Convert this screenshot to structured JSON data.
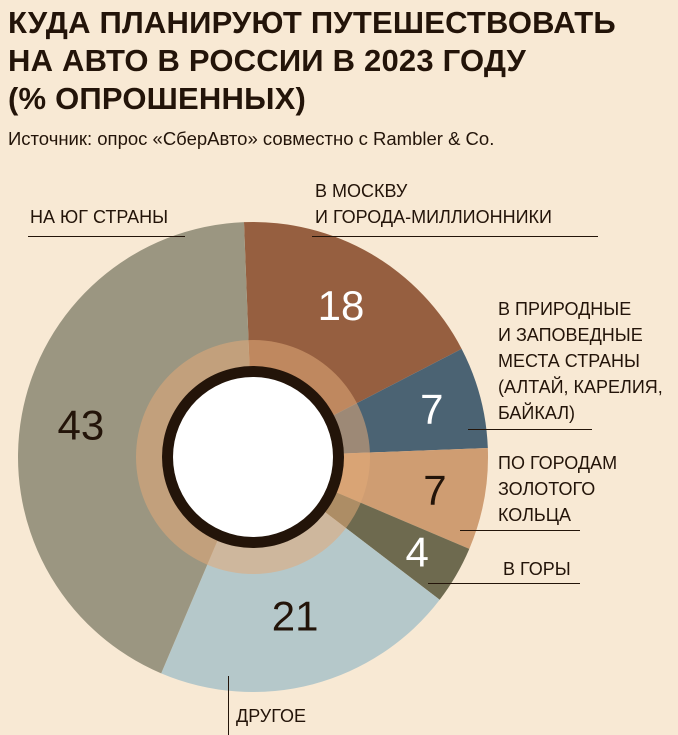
{
  "title_lines": [
    "КУДА ПЛАНИРУЮТ ПУТЕШЕСТВОВАТЬ",
    "НА АВТО В РОССИИ В 2023 ГОДУ",
    "(% ОПРОШЕННЫХ)"
  ],
  "source": "Источник: опрос «СберАвто» совместно с Rambler & Co.",
  "chart_data": {
    "type": "pie",
    "title": "КУДА ПЛАНИРУЮТ ПУТЕШЕСТВОВАТЬ НА АВТО В РОССИИ В 2023 ГОДУ (% ОПРОШЕННЫХ)",
    "categories": [
      "В МОСКВУ И ГОРОДА-МИЛЛИОННИКИ",
      "В ПРИРОДНЫЕ И ЗАПОВЕДНЫЕ МЕСТА СТРАНЫ (АЛТАЙ, КАРЕЛИЯ, БАЙКАЛ)",
      "ПО ГОРОДАМ ЗОЛОТОГО КОЛЬЦА",
      "В ГОРЫ",
      "ДРУГОЕ",
      "НА ЮГ СТРАНЫ"
    ],
    "values": [
      18,
      7,
      7,
      4,
      21,
      43
    ],
    "colors": [
      "#965f40",
      "#4b6373",
      "#cf9d72",
      "#6e6a4f",
      "#b5c8ca",
      "#9b9681"
    ],
    "value_label_colors": [
      "#ffffff",
      "#ffffff",
      "#231409",
      "#ffffff",
      "#231409",
      "#231409"
    ],
    "legend": "callouts"
  },
  "labels": {
    "moscow": [
      "В МОСКВУ",
      "И ГОРОДА-МИЛЛИОННИКИ"
    ],
    "nature": [
      "В ПРИРОДНЫЕ",
      "И ЗАПОВЕДНЫЕ",
      "МЕСТА СТРАНЫ",
      "(АЛТАЙ, КАРЕЛИЯ,",
      "БАЙКАЛ)"
    ],
    "golden": [
      "ПО ГОРОДАМ",
      "ЗОЛОТОГО",
      "КОЛЬЦА"
    ],
    "mountains": "В ГОРЫ",
    "other": "ДРУГОЕ",
    "south": "НА ЮГ СТРАНЫ"
  }
}
